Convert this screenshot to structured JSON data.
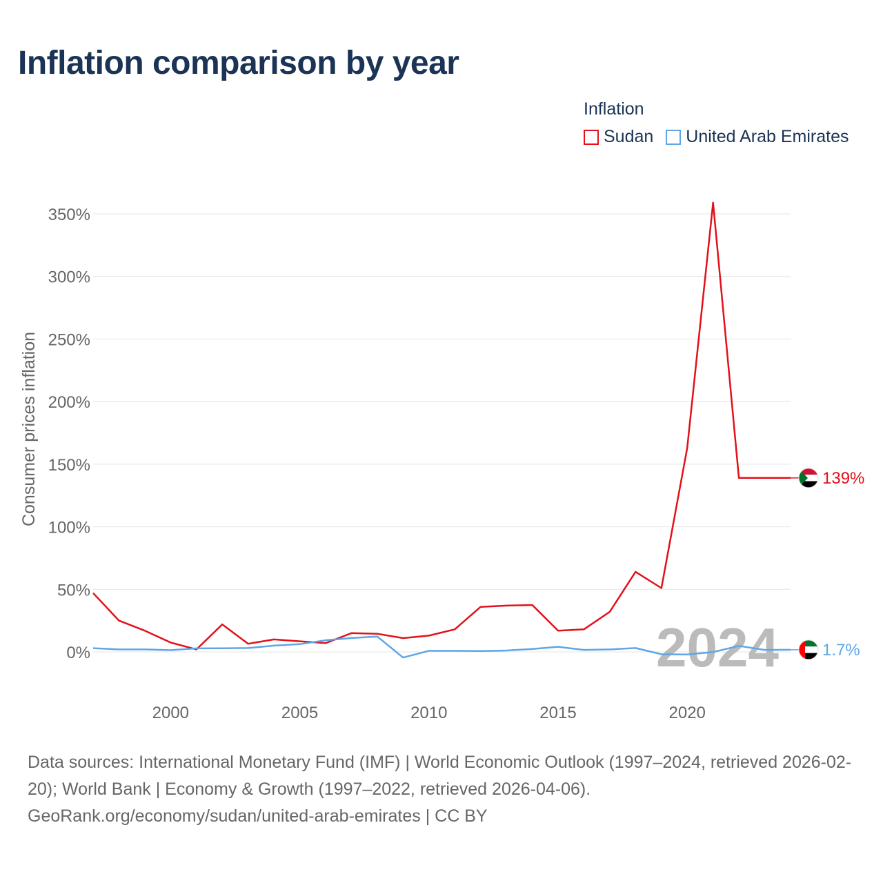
{
  "title": "Inflation comparison by year",
  "legend": {
    "title": "Inflation",
    "items": [
      {
        "name": "Sudan",
        "color": "#e3101a"
      },
      {
        "name": "United Arab Emirates",
        "color": "#5ea6e6"
      }
    ]
  },
  "chart_data": {
    "type": "line",
    "ylabel": "Consumer prices inflation",
    "xlabel": "",
    "ylim": [
      -30,
      370
    ],
    "xlim": [
      1997,
      2024
    ],
    "y_ticks": [
      0,
      50,
      100,
      150,
      200,
      250,
      300,
      350
    ],
    "y_tick_labels": [
      "0%",
      "50%",
      "100%",
      "150%",
      "200%",
      "250%",
      "300%",
      "350%"
    ],
    "x_ticks": [
      2000,
      2005,
      2010,
      2015,
      2020
    ],
    "x_tick_labels": [
      "2000",
      "2005",
      "2010",
      "2015",
      "2020"
    ],
    "grid": true,
    "watermark_year": "2024",
    "series": [
      {
        "name": "Sudan",
        "color": "#e3101a",
        "end_label": "139%",
        "x": [
          1997,
          1998,
          1999,
          2000,
          2001,
          2002,
          2003,
          2004,
          2005,
          2006,
          2007,
          2008,
          2009,
          2010,
          2011,
          2012,
          2013,
          2014,
          2015,
          2016,
          2017,
          2018,
          2019,
          2020,
          2021,
          2022,
          2023,
          2024
        ],
        "values": [
          47,
          25,
          17,
          7.5,
          2,
          22,
          6.5,
          10,
          8.5,
          7,
          15,
          14.5,
          11,
          13,
          18,
          36,
          37,
          37.5,
          17,
          18,
          32,
          64,
          51,
          163,
          359,
          139,
          139,
          139
        ]
      },
      {
        "name": "United Arab Emirates",
        "color": "#5ea6e6",
        "end_label": "1.7%",
        "x": [
          1997,
          1998,
          1999,
          2000,
          2001,
          2002,
          2003,
          2004,
          2005,
          2006,
          2007,
          2008,
          2009,
          2010,
          2011,
          2012,
          2013,
          2014,
          2015,
          2016,
          2017,
          2018,
          2019,
          2020,
          2021,
          2022,
          2023,
          2024
        ],
        "values": [
          3,
          2,
          2,
          1.4,
          2.8,
          2.9,
          3.1,
          5,
          6.2,
          9.3,
          11.1,
          12.3,
          -4.5,
          0.9,
          0.9,
          0.7,
          1.1,
          2.3,
          4.1,
          1.6,
          2,
          3.1,
          -1.9,
          -2.1,
          -0.1,
          4.8,
          1.6,
          1.7
        ]
      }
    ]
  },
  "footer": {
    "line1": "Data sources: International Monetary Fund (IMF) | World Economic Outlook (1997–2024, retrieved 2026-02-20); World Bank | Economy & Growth (1997–2022, retrieved 2026-04-06).",
    "line2": "GeoRank.org/economy/sudan/united-arab-emirates | CC BY"
  }
}
